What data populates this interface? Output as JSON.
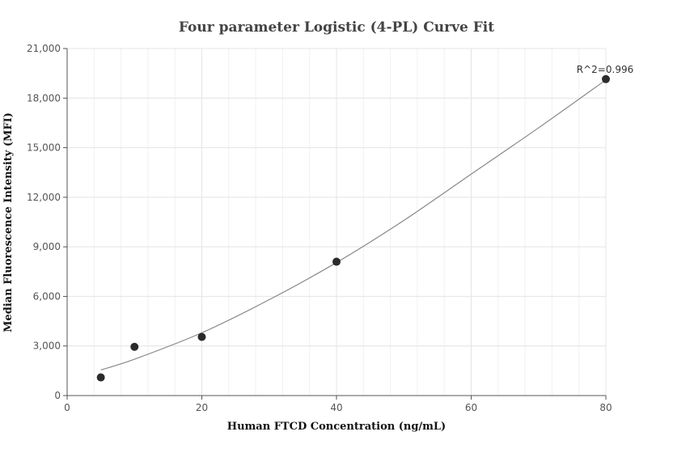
{
  "chart_data": {
    "type": "scatter",
    "title": "Four parameter Logistic (4-PL) Curve Fit",
    "xlabel": "Human FTCD Concentration (ng/mL)",
    "ylabel": "Median Fluorescence Intensity (MFI)",
    "xlim": [
      0,
      80
    ],
    "ylim": [
      0,
      21000
    ],
    "xticks": [
      0,
      20,
      40,
      60,
      80
    ],
    "yticks": [
      0,
      3000,
      6000,
      9000,
      12000,
      15000,
      18000,
      21000
    ],
    "xtick_labels": [
      "0",
      "20",
      "40",
      "60",
      "80"
    ],
    "ytick_labels": [
      "0",
      "3,000",
      "6,000",
      "9,000",
      "12,000",
      "15,000",
      "18,000",
      "21,000"
    ],
    "grid": true,
    "series": [
      {
        "points": [
          {
            "x": 5,
            "y": 1100
          },
          {
            "x": 10,
            "y": 2950
          },
          {
            "x": 20,
            "y": 3550
          },
          {
            "x": 40,
            "y": 8100
          },
          {
            "x": 80,
            "y": 19150
          }
        ],
        "color": "#2b2b2b"
      }
    ],
    "fit_curve": {
      "points": [
        {
          "x": 5,
          "y": 1550
        },
        {
          "x": 10,
          "y": 2200
        },
        {
          "x": 20,
          "y": 3800
        },
        {
          "x": 30,
          "y": 5800
        },
        {
          "x": 40,
          "y": 8050
        },
        {
          "x": 50,
          "y": 10600
        },
        {
          "x": 60,
          "y": 13400
        },
        {
          "x": 70,
          "y": 16200
        },
        {
          "x": 80,
          "y": 19100
        }
      ],
      "color": "#888888"
    },
    "annotation": {
      "text": "R^2=0.996",
      "x": 80,
      "y": 19150
    }
  }
}
